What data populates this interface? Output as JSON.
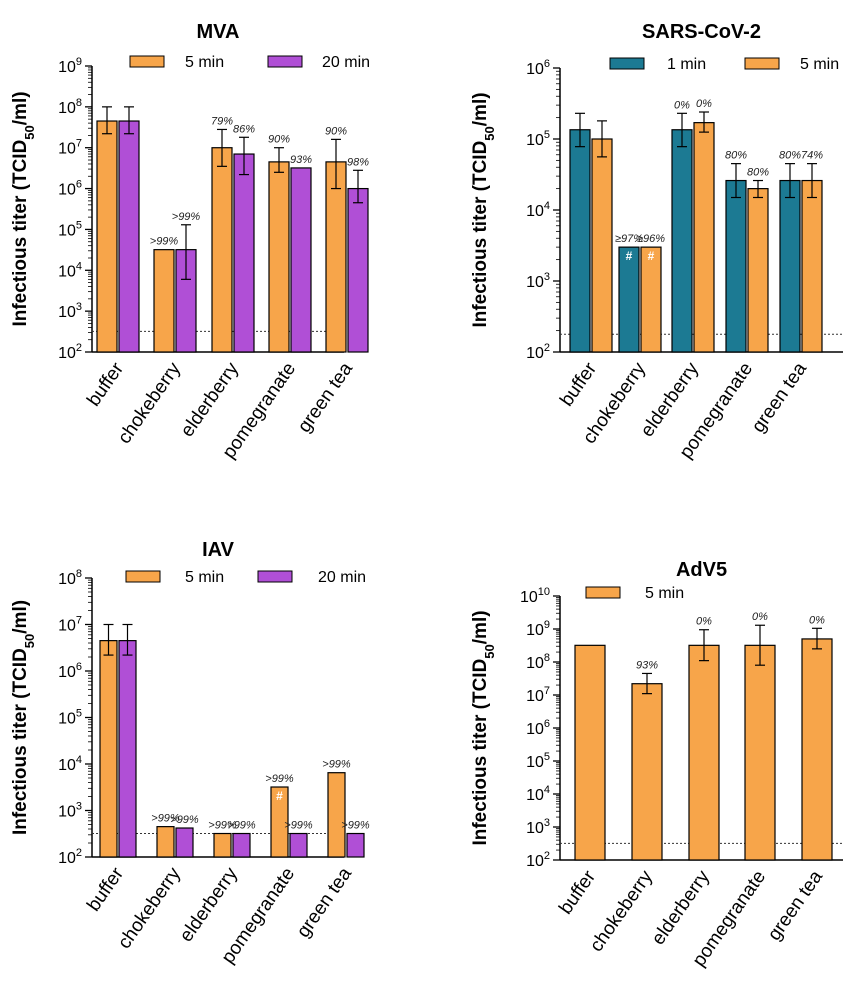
{
  "y_axis_label": "Infectious titer (TCID50/ml)",
  "y_axis_label_main": "Infectious titer (TCID",
  "y_axis_label_sub": "50",
  "y_axis_label_tail": "/ml)",
  "colors": {
    "orange": "#F7A54A",
    "purple": "#B04FD6",
    "teal": "#1C7A93"
  },
  "chart_data": [
    {
      "type": "bar",
      "title": "MVA",
      "ylabel": "Infectious titer (TCID50/ml)",
      "yscale": "log",
      "ylim": [
        100,
        1000000000
      ],
      "detection_limit": 320,
      "categories": [
        "buffer",
        "chokeberry",
        "elderberry",
        "pomegranate",
        "green tea"
      ],
      "series": [
        {
          "name": "5 min",
          "color": "#F7A54A",
          "values": [
            45000000,
            32000,
            10000000,
            4500000,
            4500000
          ],
          "err_low": [
            22000000,
            null,
            3500000,
            2500000,
            1000000
          ],
          "err_high": [
            100000000,
            null,
            28000000,
            10000000,
            16000000
          ],
          "labels": [
            "",
            ">99%",
            "79%",
            "90%",
            "90%"
          ],
          "hash": [
            false,
            false,
            false,
            false,
            false
          ]
        },
        {
          "name": "20 min",
          "color": "#B04FD6",
          "values": [
            45000000,
            32000,
            7000000,
            3200000,
            1000000
          ],
          "err_low": [
            22000000,
            6000,
            2200000,
            null,
            450000
          ],
          "err_high": [
            100000000,
            130000,
            18000000,
            null,
            2800000
          ],
          "labels": [
            "",
            ">99%",
            "86%",
            "93%",
            "98%"
          ],
          "hash": [
            false,
            false,
            false,
            false,
            false
          ]
        }
      ]
    },
    {
      "type": "bar",
      "title": "SARS-CoV-2",
      "ylabel": "Infectious titer (TCID50/ml)",
      "yscale": "log",
      "ylim": [
        100,
        1000000
      ],
      "detection_limit": 178,
      "categories": [
        "buffer",
        "chokeberry",
        "elderberry",
        "pomegranate",
        "green tea"
      ],
      "series": [
        {
          "name": "1 min",
          "color": "#1C7A93",
          "values": [
            135000,
            3000,
            135000,
            26000,
            26000
          ],
          "err_low": [
            78000,
            null,
            78000,
            15000,
            15000
          ],
          "err_high": [
            230000,
            null,
            230000,
            45000,
            45000
          ],
          "labels": [
            "",
            "≥97%",
            "0%",
            "80%",
            "80%"
          ],
          "hash": [
            false,
            true,
            false,
            false,
            false
          ]
        },
        {
          "name": "5 min",
          "color": "#F7A54A",
          "values": [
            100000,
            3000,
            170000,
            20000,
            26000
          ],
          "err_low": [
            56000,
            null,
            125000,
            15000,
            15000
          ],
          "err_high": [
            180000,
            null,
            240000,
            26000,
            45000
          ],
          "labels": [
            "",
            "≥96%",
            "0%",
            "80%",
            "74%"
          ],
          "hash": [
            false,
            true,
            false,
            false,
            false
          ]
        }
      ]
    },
    {
      "type": "bar",
      "title": "IAV",
      "ylabel": "Infectious titer (TCID50/ml)",
      "yscale": "log",
      "ylim": [
        100,
        100000000
      ],
      "detection_limit": 320,
      "categories": [
        "buffer",
        "chokeberry",
        "elderberry",
        "pomegranate",
        "green tea"
      ],
      "series": [
        {
          "name": "5 min",
          "color": "#F7A54A",
          "values": [
            4500000,
            450,
            320,
            3200,
            6500
          ],
          "err_low": [
            2200000,
            null,
            null,
            null,
            null
          ],
          "err_high": [
            10000000,
            null,
            null,
            null,
            null
          ],
          "labels": [
            "",
            ">99%",
            ">99%",
            ">99%",
            ">99%"
          ],
          "hash": [
            false,
            false,
            false,
            true,
            false
          ]
        },
        {
          "name": "20 min",
          "color": "#B04FD6",
          "values": [
            4500000,
            420,
            320,
            320,
            320
          ],
          "err_low": [
            2200000,
            null,
            null,
            null,
            null
          ],
          "err_high": [
            10000000,
            null,
            null,
            null,
            null
          ],
          "labels": [
            "",
            ">99%",
            ">99%",
            ">99%",
            ">99%"
          ],
          "hash": [
            false,
            false,
            false,
            false,
            false
          ]
        }
      ]
    },
    {
      "type": "bar",
      "title": "AdV5",
      "ylabel": "Infectious titer (TCID50/ml)",
      "yscale": "log",
      "ylim": [
        100,
        10000000000
      ],
      "detection_limit": 320,
      "categories": [
        "buffer",
        "chokeberry",
        "elderberry",
        "pomegranate",
        "green tea"
      ],
      "series": [
        {
          "name": "5 min",
          "color": "#F7A54A",
          "values": [
            320000000,
            22000000,
            320000000,
            320000000,
            500000000
          ],
          "err_low": [
            null,
            11000000,
            110000000,
            80000000,
            250000000
          ],
          "err_high": [
            null,
            45000000,
            950000000,
            1300000000,
            1050000000
          ],
          "labels": [
            "",
            "93%",
            "0%",
            "0%",
            "0%"
          ],
          "hash": [
            false,
            false,
            false,
            false,
            false
          ]
        }
      ]
    }
  ]
}
